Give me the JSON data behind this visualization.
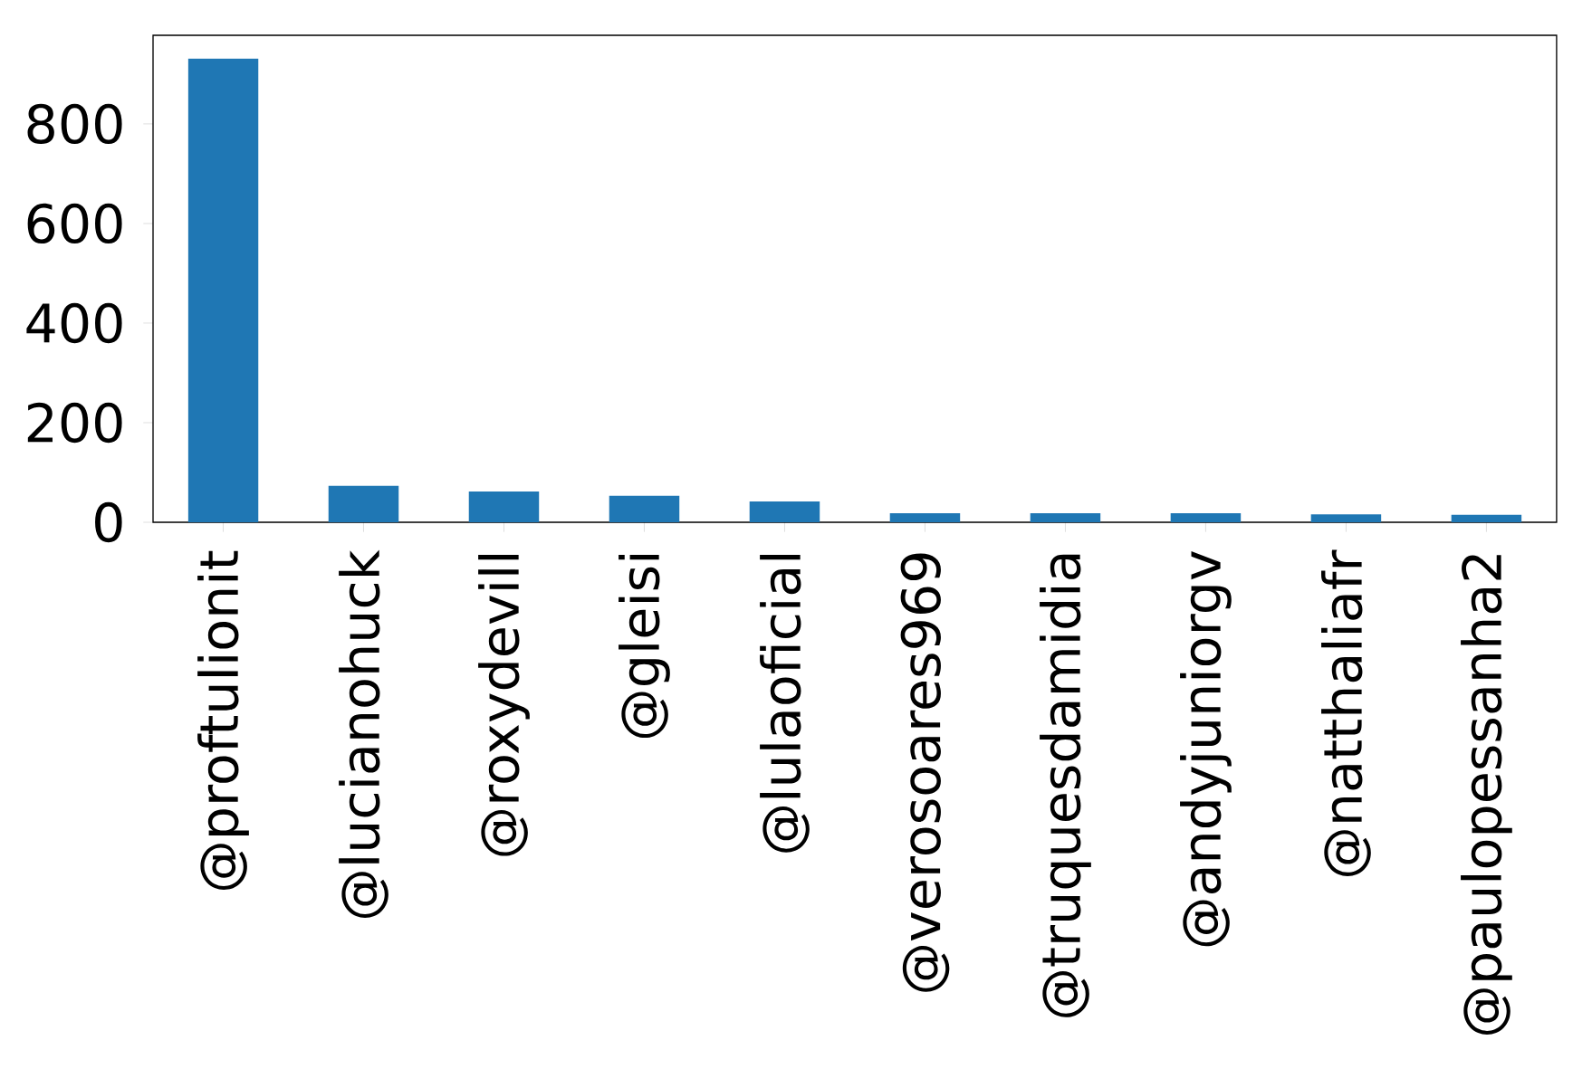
{
  "chart_data": {
    "type": "bar",
    "categories": [
      "@proftulionit",
      "@lucianohuck",
      "@roxydevill",
      "@gleisi",
      "@lulaoficial",
      "@verosoares969",
      "@truquesdamidia",
      "@andyjuniorgv",
      "@natthaliafr",
      "@paulopessanha2"
    ],
    "values": [
      931,
      73,
      62,
      53,
      42,
      18,
      18,
      18,
      16,
      15
    ],
    "color": "#1f77b4",
    "ylim": [
      0,
      978
    ],
    "yticks": [
      0,
      200,
      400,
      600,
      800
    ]
  }
}
